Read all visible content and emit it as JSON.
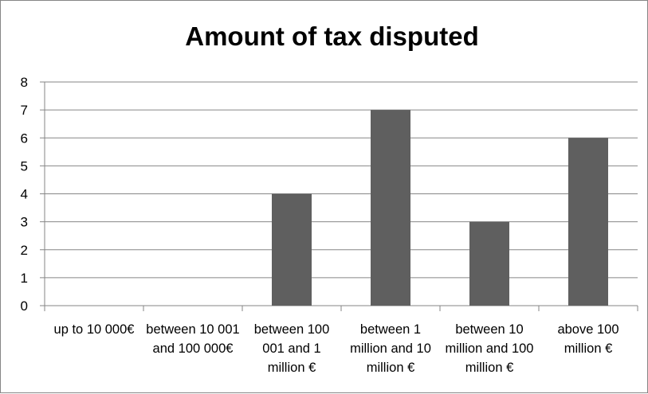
{
  "chart_data": {
    "type": "bar",
    "title": "Amount of tax disputed",
    "xlabel": "",
    "ylabel": "",
    "categories": [
      "up to 10 000€",
      "between 10 001 and 100 000€",
      "between 100 001 and 1 million €",
      "between 1 million and 10 million €",
      "between 10 million and 100 million €",
      "above 100 million €"
    ],
    "values": [
      0,
      0,
      4,
      7,
      3,
      6
    ],
    "ylim": [
      0,
      8
    ],
    "yticks": [
      "0",
      "1",
      "2",
      "3",
      "4",
      "5",
      "6",
      "7",
      "8"
    ],
    "grid": true,
    "legend": "none",
    "bar_color": "#5f5f5f",
    "grid_color": "#868686"
  }
}
